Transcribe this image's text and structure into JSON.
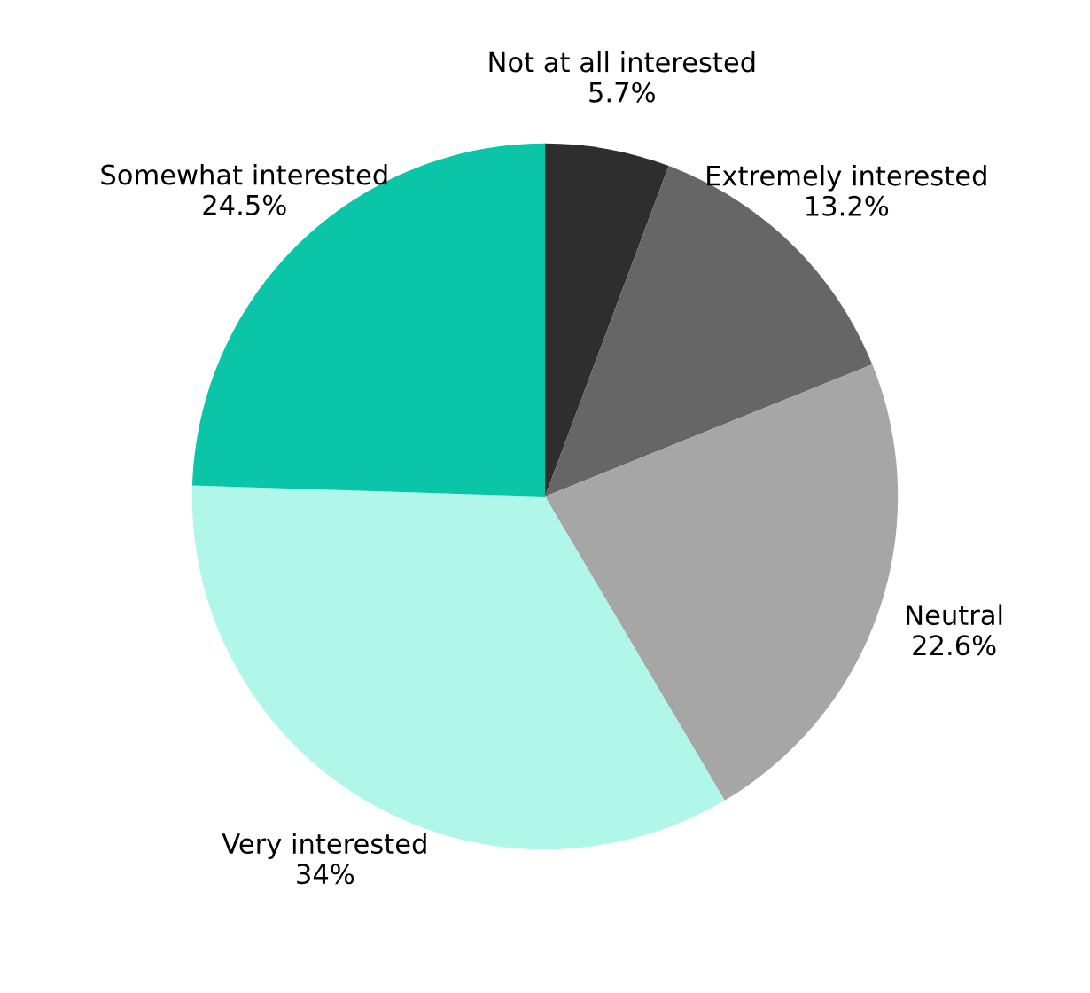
{
  "chart_data": {
    "type": "pie",
    "categories": [
      "Not at all interested",
      "Extremely interested",
      "Neutral",
      "Very interested",
      "Somewhat interested"
    ],
    "values": [
      5.7,
      13.2,
      22.6,
      34,
      24.5
    ],
    "value_labels": [
      "5.7%",
      "13.2%",
      "22.6%",
      "34%",
      "24.5%"
    ],
    "colors": [
      "#2e2e2e",
      "#666666",
      "#a6a6a6",
      "#b0f7ea",
      "#0ac5a8"
    ]
  }
}
